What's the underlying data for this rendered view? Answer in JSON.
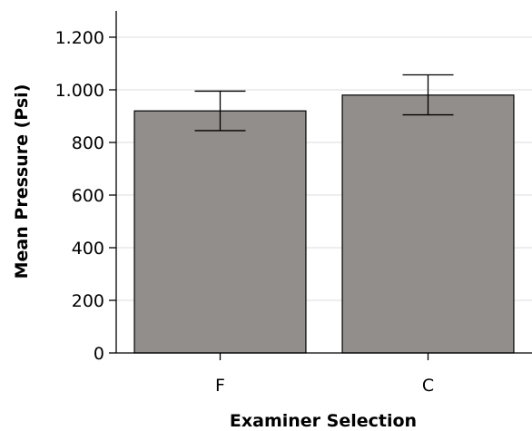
{
  "chart_data": {
    "type": "bar",
    "categories": [
      "F",
      "C"
    ],
    "values": [
      920,
      980
    ],
    "error_bars": [
      {
        "category": "F",
        "low": 845,
        "high": 995
      },
      {
        "category": "C",
        "low": 905,
        "high": 1057
      }
    ],
    "xlabel": "Examiner Selection",
    "ylabel": "Mean Pressure (Psi)",
    "ylim": [
      0,
      1300
    ],
    "yticks": [
      0,
      200,
      400,
      600,
      800,
      1000,
      1200
    ],
    "ytick_labels": [
      "0",
      "200",
      "400",
      "600",
      "800",
      "1.000",
      "1.200"
    ],
    "grid": "horizontal",
    "colors": {
      "bar_fill": "#928e8b",
      "bar_stroke": "#000000",
      "grid": "#dcdcdc",
      "axis": "#000000"
    }
  }
}
